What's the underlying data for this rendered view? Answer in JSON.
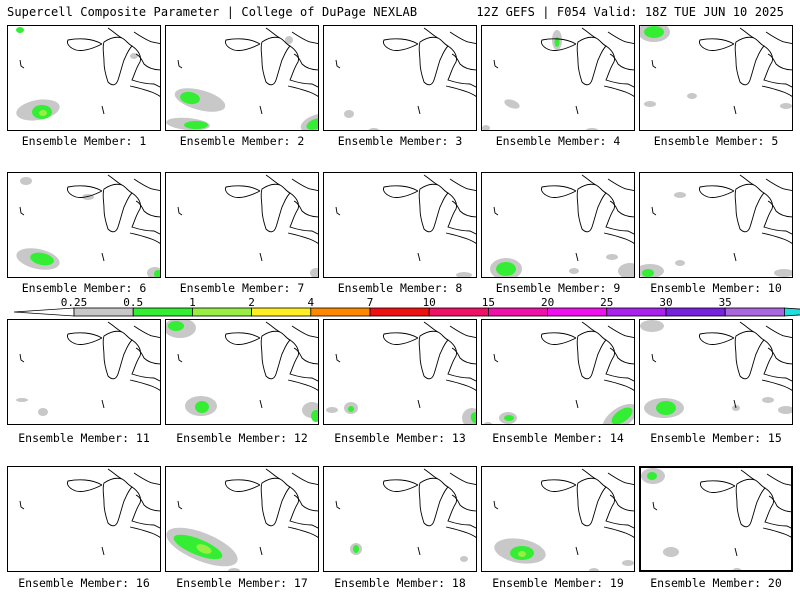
{
  "header": {
    "title_left": "Supercell Composite Parameter | College of DuPage NEXLAB",
    "title_right": "12Z GEFS | F054 Valid: 18Z TUE JUN 10 2025"
  },
  "members": [
    {
      "label": "Ensemble Member: 1"
    },
    {
      "label": "Ensemble Member: 2"
    },
    {
      "label": "Ensemble Member: 3"
    },
    {
      "label": "Ensemble Member: 4"
    },
    {
      "label": "Ensemble Member: 5"
    },
    {
      "label": "Ensemble Member: 6"
    },
    {
      "label": "Ensemble Member: 7"
    },
    {
      "label": "Ensemble Member: 8"
    },
    {
      "label": "Ensemble Member: 9"
    },
    {
      "label": "Ensemble Member: 10"
    },
    {
      "label": "Ensemble Member: 11"
    },
    {
      "label": "Ensemble Member: 12"
    },
    {
      "label": "Ensemble Member: 13"
    },
    {
      "label": "Ensemble Member: 14"
    },
    {
      "label": "Ensemble Member: 15"
    },
    {
      "label": "Ensemble Member: 16"
    },
    {
      "label": "Ensemble Member: 17"
    },
    {
      "label": "Ensemble Member: 18"
    },
    {
      "label": "Ensemble Member: 19"
    },
    {
      "label": "Ensemble Member: 20"
    }
  ],
  "colorbar": {
    "ticks": [
      "0.25",
      "0.5",
      "1",
      "2",
      "4",
      "7",
      "10",
      "15",
      "20",
      "25",
      "30",
      "35"
    ],
    "colors": [
      "#c8c8c8",
      "#33ee33",
      "#99ee44",
      "#ffee22",
      "#ff8800",
      "#ee1111",
      "#ee1166",
      "#ee11aa",
      "#ee11ee",
      "#aa22ee",
      "#7722dd",
      "#aa66dd",
      "#22dddd"
    ]
  },
  "colors": {
    "light": "#c8c8c8",
    "green": "#33ee33",
    "lime": "#99ee44"
  }
}
